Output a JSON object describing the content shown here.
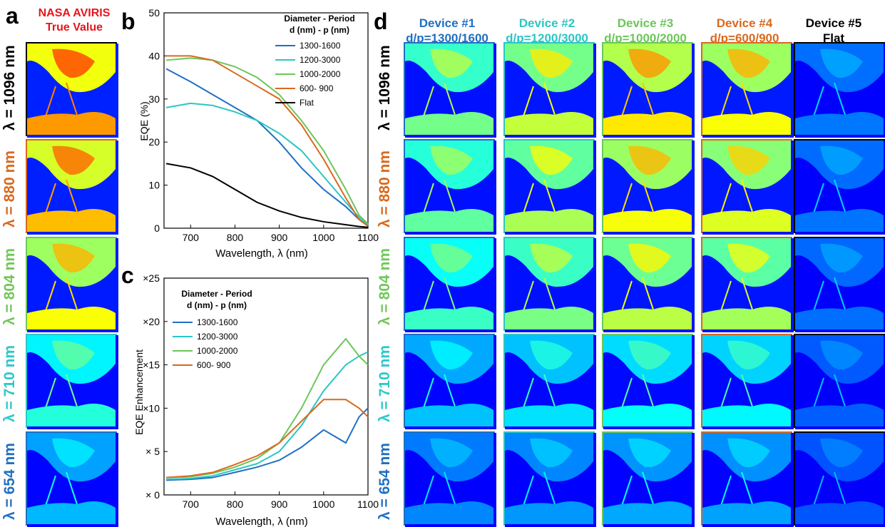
{
  "panel_labels": {
    "a": "a",
    "b": "b",
    "c": "c",
    "d": "d"
  },
  "panel_a": {
    "title_line1": "NASA AVIRIS",
    "title_line2": "True Value"
  },
  "row_labels": [
    "λ = 1096 nm",
    "λ = 880 nm",
    "λ = 804 nm",
    "λ = 710 nm",
    "λ = 654 nm"
  ],
  "row_colors": [
    "#000000",
    "#d9691e",
    "#72c75a",
    "#2ec8c8",
    "#2170c0"
  ],
  "devices": [
    {
      "title": "Device #1",
      "subtitle": "d/p=1300/1600",
      "color": "#1f6fc4"
    },
    {
      "title": "Device #2",
      "subtitle": "d/p=1200/3000",
      "color": "#2cc5c5"
    },
    {
      "title": "Device #3",
      "subtitle": "d/p=1000/2000",
      "color": "#6cc65a"
    },
    {
      "title": "Device #4",
      "subtitle": "d/p=600/900",
      "color": "#d9691e"
    },
    {
      "title": "Device #5",
      "subtitle": "Flat",
      "color": "#000000"
    }
  ],
  "chart_data": [
    {
      "type": "line",
      "panel": "b",
      "xlabel": "Wavelength, λ (nm)",
      "ylabel": "EQE (%)",
      "xlim": [
        640,
        1100
      ],
      "ylim": [
        0,
        50
      ],
      "xticks": [
        700,
        800,
        900,
        1000,
        1100
      ],
      "yticks": [
        0,
        10,
        20,
        30,
        40,
        50
      ],
      "legend_title_line1": "Diameter - Period",
      "legend_title_line2": "d (nm) - p (nm)",
      "legend_position": "top-right",
      "series": [
        {
          "name": "1300-1600",
          "color": "#1f6fc4",
          "x": [
            645,
            700,
            750,
            800,
            850,
            900,
            950,
            1000,
            1050,
            1080,
            1100
          ],
          "y": [
            37,
            34,
            31,
            28,
            25,
            20,
            14,
            9,
            5,
            2,
            0.5
          ]
        },
        {
          "name": "1200-3000",
          "color": "#2cc5c5",
          "x": [
            645,
            700,
            750,
            800,
            850,
            900,
            950,
            1000,
            1050,
            1080,
            1100
          ],
          "y": [
            28,
            29,
            28.5,
            27,
            25,
            22,
            18,
            12,
            6,
            2.5,
            0.8
          ]
        },
        {
          "name": "1000-2000",
          "color": "#6cc65a",
          "x": [
            645,
            700,
            750,
            800,
            850,
            900,
            950,
            1000,
            1050,
            1080,
            1100
          ],
          "y": [
            39,
            39.5,
            39,
            37.5,
            35,
            31,
            25,
            18,
            9,
            3,
            1
          ]
        },
        {
          "name": "600- 900",
          "color": "#d9691e",
          "x": [
            645,
            700,
            750,
            800,
            850,
            900,
            950,
            1000,
            1050,
            1080,
            1100
          ],
          "y": [
            40,
            40,
            39,
            36,
            33,
            30,
            24,
            16,
            7,
            2,
            0.5
          ]
        },
        {
          "name": "Flat",
          "color": "#000000",
          "x": [
            645,
            700,
            750,
            800,
            850,
            900,
            950,
            1000,
            1050,
            1080,
            1100
          ],
          "y": [
            15,
            14,
            12,
            9,
            6,
            4,
            2.5,
            1.5,
            0.8,
            0.4,
            0.2
          ]
        }
      ]
    },
    {
      "type": "line",
      "panel": "c",
      "xlabel": "Wavelength, λ (nm)",
      "ylabel": "EQE Enhancement",
      "xlim": [
        640,
        1100
      ],
      "ylim": [
        0,
        25
      ],
      "xticks": [
        700,
        800,
        900,
        1000,
        1100
      ],
      "yticks": [
        0,
        5,
        10,
        15,
        20,
        25
      ],
      "ytick_labels": [
        "× 0",
        "× 5",
        "×10",
        "×15",
        "×20",
        "×25"
      ],
      "legend_title_line1": "Diameter - Period",
      "legend_title_line2": "d (nm) - p (nm)",
      "legend_position": "top-left",
      "series": [
        {
          "name": "1300-1600",
          "color": "#1f6fc4",
          "x": [
            645,
            700,
            750,
            800,
            850,
            900,
            950,
            1000,
            1050,
            1080,
            1100
          ],
          "y": [
            1.7,
            1.8,
            2.0,
            2.6,
            3.2,
            4.0,
            5.5,
            7.5,
            6.0,
            9.0,
            10.0
          ]
        },
        {
          "name": "1200-3000",
          "color": "#2cc5c5",
          "x": [
            645,
            700,
            750,
            800,
            850,
            900,
            950,
            1000,
            1050,
            1080,
            1100
          ],
          "y": [
            1.8,
            1.9,
            2.2,
            2.9,
            3.6,
            5.0,
            8.0,
            12.0,
            15.0,
            16.0,
            16.5
          ]
        },
        {
          "name": "1000-2000",
          "color": "#6cc65a",
          "x": [
            645,
            700,
            750,
            800,
            850,
            900,
            950,
            1000,
            1050,
            1080,
            1100
          ],
          "y": [
            2.0,
            2.1,
            2.5,
            3.2,
            4.2,
            6.0,
            10.0,
            15.0,
            18.0,
            16.0,
            15.0
          ]
        },
        {
          "name": "600- 900",
          "color": "#d9691e",
          "x": [
            645,
            700,
            750,
            800,
            850,
            900,
            950,
            1000,
            1050,
            1080,
            1100
          ],
          "y": [
            2.0,
            2.2,
            2.6,
            3.5,
            4.5,
            6.0,
            8.5,
            11.0,
            11.0,
            10.0,
            9.0
          ]
        }
      ]
    }
  ]
}
